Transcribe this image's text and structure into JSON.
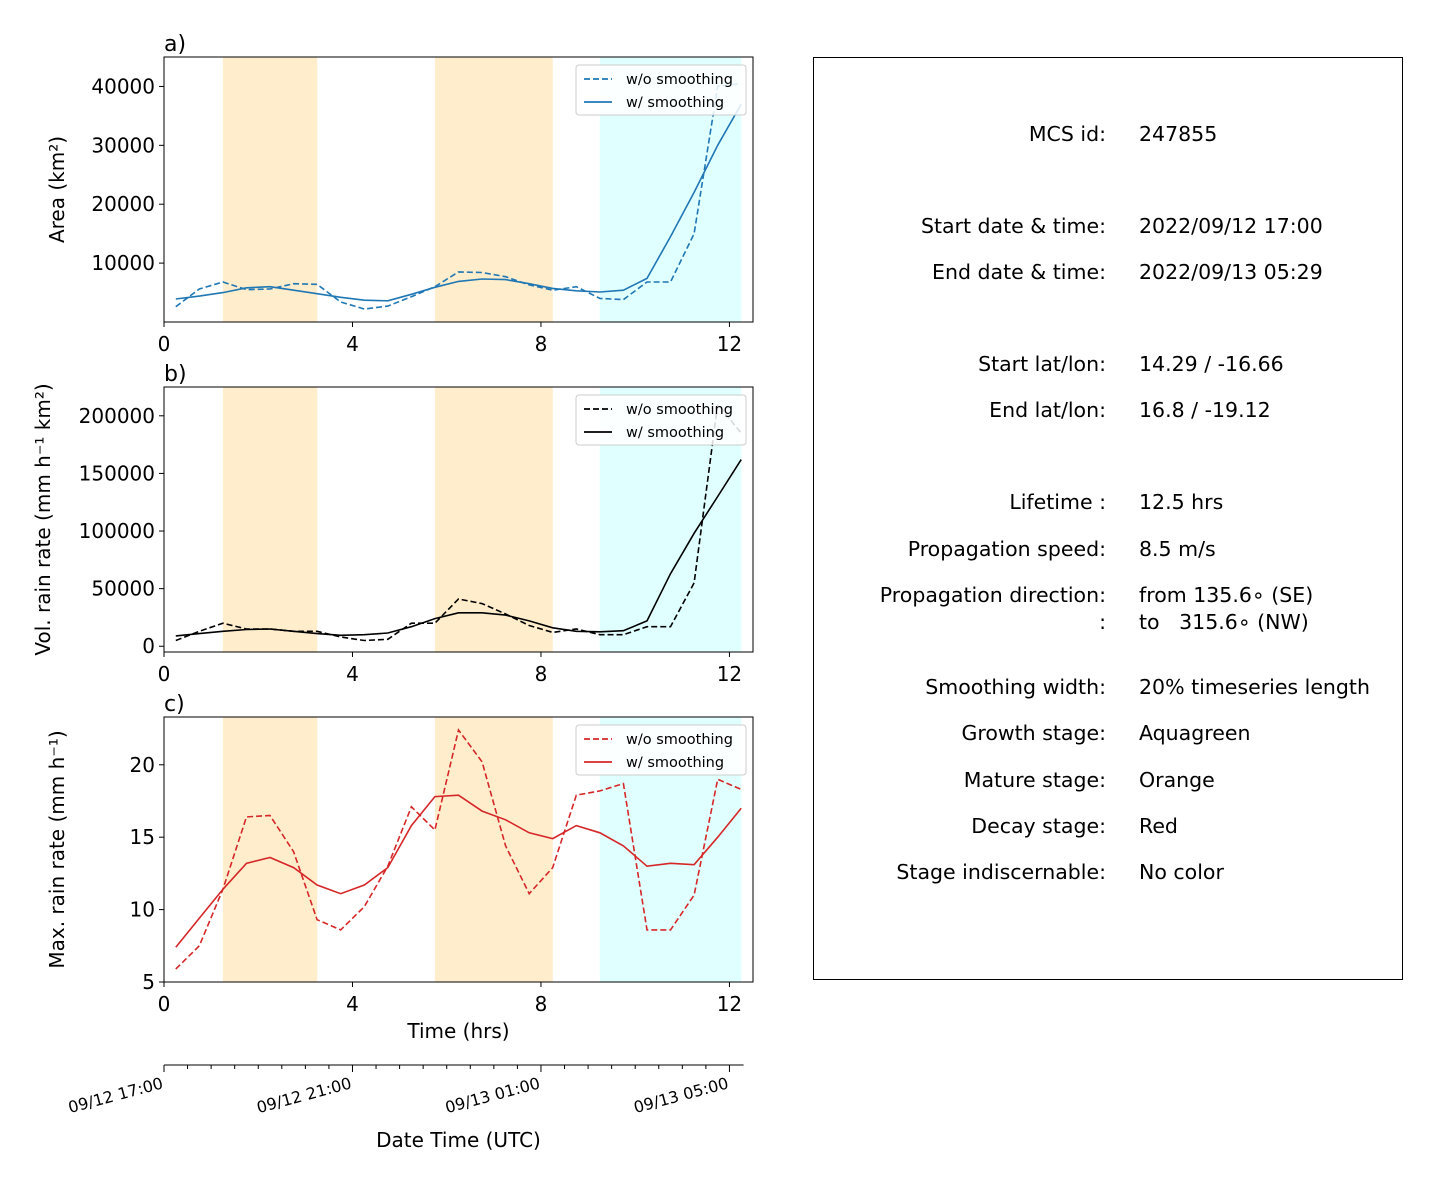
{
  "chart_data": [
    {
      "type": "line",
      "panel_label": "a)",
      "ylabel": "Area  (km²)",
      "xlim": [
        0,
        12.5
      ],
      "ylim": [
        0,
        45000
      ],
      "xticks": [
        0,
        4,
        8,
        12
      ],
      "yticks": [
        10000,
        20000,
        30000,
        40000
      ],
      "stage_bands": [
        {
          "stage": "mature",
          "color": "#ffedcc",
          "x0": 1.25,
          "x1": 3.25
        },
        {
          "stage": "mature",
          "color": "#ffedcc",
          "x0": 5.75,
          "x1": 8.25
        },
        {
          "stage": "growth",
          "color": "#e0ffff",
          "x0": 9.25,
          "x1": 12.25
        }
      ],
      "color": "#1f77b4",
      "legend_position": "upper right",
      "x": [
        0.25,
        0.75,
        1.25,
        1.75,
        2.25,
        2.75,
        3.25,
        3.75,
        4.25,
        4.75,
        5.25,
        5.75,
        6.25,
        6.75,
        7.25,
        7.75,
        8.25,
        8.75,
        9.25,
        9.75,
        10.25,
        10.75,
        11.25,
        11.75,
        12.25
      ],
      "series": [
        {
          "name": "w/o smoothing",
          "style": "dashed",
          "values": [
            2600,
            5600,
            6800,
            5500,
            5600,
            6500,
            6400,
            3400,
            2200,
            2700,
            4300,
            6000,
            8500,
            8400,
            7700,
            6300,
            5400,
            6000,
            4000,
            3800,
            6800,
            6800,
            15000,
            40000,
            40500
          ]
        },
        {
          "name": "w/ smoothing",
          "style": "solid",
          "values": [
            3900,
            4400,
            5000,
            5800,
            6000,
            5400,
            4800,
            4200,
            3700,
            3600,
            4700,
            5900,
            6900,
            7300,
            7200,
            6500,
            5700,
            5300,
            5100,
            5400,
            7400,
            14500,
            22000,
            30000,
            37000
          ]
        }
      ]
    },
    {
      "type": "line",
      "panel_label": "b)",
      "ylabel": "Vol. rain rate (mm h⁻¹ km²)",
      "xlim": [
        0,
        12.5
      ],
      "ylim": [
        -5000,
        225000
      ],
      "xticks": [
        0,
        4,
        8,
        12
      ],
      "yticks": [
        0,
        50000,
        100000,
        150000,
        200000
      ],
      "stage_bands": [
        {
          "stage": "mature",
          "color": "#ffedcc",
          "x0": 1.25,
          "x1": 3.25
        },
        {
          "stage": "mature",
          "color": "#ffedcc",
          "x0": 5.75,
          "x1": 8.25
        },
        {
          "stage": "growth",
          "color": "#e0ffff",
          "x0": 9.25,
          "x1": 12.25
        }
      ],
      "color": "#000000",
      "legend_position": "upper right",
      "x": [
        0.25,
        0.75,
        1.25,
        1.75,
        2.25,
        2.75,
        3.25,
        3.75,
        4.25,
        4.75,
        5.25,
        5.75,
        6.25,
        6.75,
        7.25,
        7.75,
        8.25,
        8.75,
        9.25,
        9.75,
        10.25,
        10.75,
        11.25,
        11.75,
        12.25
      ],
      "series": [
        {
          "name": "w/o smoothing",
          "style": "dashed",
          "values": [
            5000,
            13000,
            20000,
            15000,
            15000,
            13000,
            13000,
            8000,
            5000,
            6000,
            20000,
            20000,
            41000,
            37000,
            28000,
            18000,
            12000,
            15000,
            10000,
            10000,
            17000,
            17000,
            55000,
            210000,
            185000
          ]
        },
        {
          "name": "w/ smoothing",
          "style": "solid",
          "values": [
            9000,
            11000,
            13000,
            14500,
            15000,
            13000,
            11000,
            9500,
            10000,
            11500,
            17000,
            24000,
            29000,
            29000,
            27000,
            22000,
            16000,
            13000,
            12500,
            13500,
            22000,
            63000,
            98000,
            130000,
            162000
          ]
        }
      ]
    },
    {
      "type": "line",
      "panel_label": "c)",
      "ylabel": "Max. rain rate  (mm h⁻¹)",
      "xlabel": "Time (hrs)",
      "xlim": [
        0,
        12.5
      ],
      "ylim": [
        5,
        23.3
      ],
      "xticks": [
        0,
        4,
        8,
        12
      ],
      "yticks": [
        5,
        10,
        15,
        20
      ],
      "stage_bands": [
        {
          "stage": "mature",
          "color": "#ffedcc",
          "x0": 1.25,
          "x1": 3.25
        },
        {
          "stage": "mature",
          "color": "#ffedcc",
          "x0": 5.75,
          "x1": 8.25
        },
        {
          "stage": "growth",
          "color": "#e0ffff",
          "x0": 9.25,
          "x1": 12.25
        }
      ],
      "color": "#d62728",
      "legend_position": "upper right",
      "x": [
        0.25,
        0.75,
        1.25,
        1.75,
        2.25,
        2.75,
        3.25,
        3.75,
        4.25,
        4.75,
        5.25,
        5.75,
        6.25,
        6.75,
        7.25,
        7.75,
        8.25,
        8.75,
        9.25,
        9.75,
        10.25,
        10.75,
        11.25,
        11.75,
        12.25
      ],
      "series": [
        {
          "name": "w/o smoothing",
          "style": "dashed",
          "values": [
            5.9,
            7.5,
            11.4,
            16.4,
            16.5,
            14.0,
            9.3,
            8.6,
            10.2,
            13.0,
            17.1,
            15.5,
            22.4,
            20.2,
            14.4,
            11.1,
            12.9,
            17.9,
            18.2,
            18.7,
            8.6,
            8.6,
            11.0,
            19.0,
            18.3
          ]
        },
        {
          "name": "w/ smoothing",
          "style": "solid",
          "values": [
            7.4,
            9.4,
            11.4,
            13.2,
            13.6,
            12.9,
            11.7,
            11.1,
            11.7,
            12.9,
            15.8,
            17.8,
            17.9,
            16.8,
            16.2,
            15.3,
            14.9,
            15.8,
            15.3,
            14.4,
            13.0,
            13.2,
            13.1,
            15.0,
            17.0
          ]
        }
      ]
    },
    {
      "type": "axis",
      "xlabel": "Date Time (UTC)",
      "xlim": [
        0,
        12.5
      ],
      "major_ticks": [
        0,
        4,
        8,
        12
      ],
      "minor_ticks": [
        0.5,
        1,
        1.5,
        2,
        2.5,
        3,
        3.5,
        4.5,
        5,
        5.5,
        6,
        6.5,
        7,
        7.5,
        8.5,
        9,
        9.5,
        10,
        10.5,
        11,
        11.5
      ],
      "tick_labels": [
        "09/12 17:00",
        "09/12 21:00",
        "09/13 01:00",
        "09/13 05:00"
      ]
    }
  ],
  "info_panel": {
    "rows": [
      {
        "label": "MCS id:",
        "value": "247855"
      },
      {
        "label": "Start date & time:",
        "value": "2022/09/12 17:00"
      },
      {
        "label": "End date & time:",
        "value": "2022/09/13 05:29"
      },
      {
        "label": "Start lat/lon:",
        "value": "14.29 / -16.66"
      },
      {
        "label": "End lat/lon:",
        "value": "16.8 / -19.12"
      },
      {
        "label": "Lifetime :",
        "value": "12.5 hrs"
      },
      {
        "label": "Propagation speed:",
        "value": "8.5 m/s"
      },
      {
        "label": "Propagation direction:",
        "value": "from 135.6∘ (SE)"
      },
      {
        "label": ":",
        "value": "to   315.6∘ (NW)"
      },
      {
        "label": "Smoothing width:",
        "value": "20% timeseries length"
      },
      {
        "label": "Growth stage:",
        "value": "Aquagreen"
      },
      {
        "label": "Mature stage:",
        "value": "Orange"
      },
      {
        "label": "Decay stage:",
        "value": "Red"
      },
      {
        "label": "Stage indiscernable:",
        "value": "No color"
      }
    ]
  }
}
